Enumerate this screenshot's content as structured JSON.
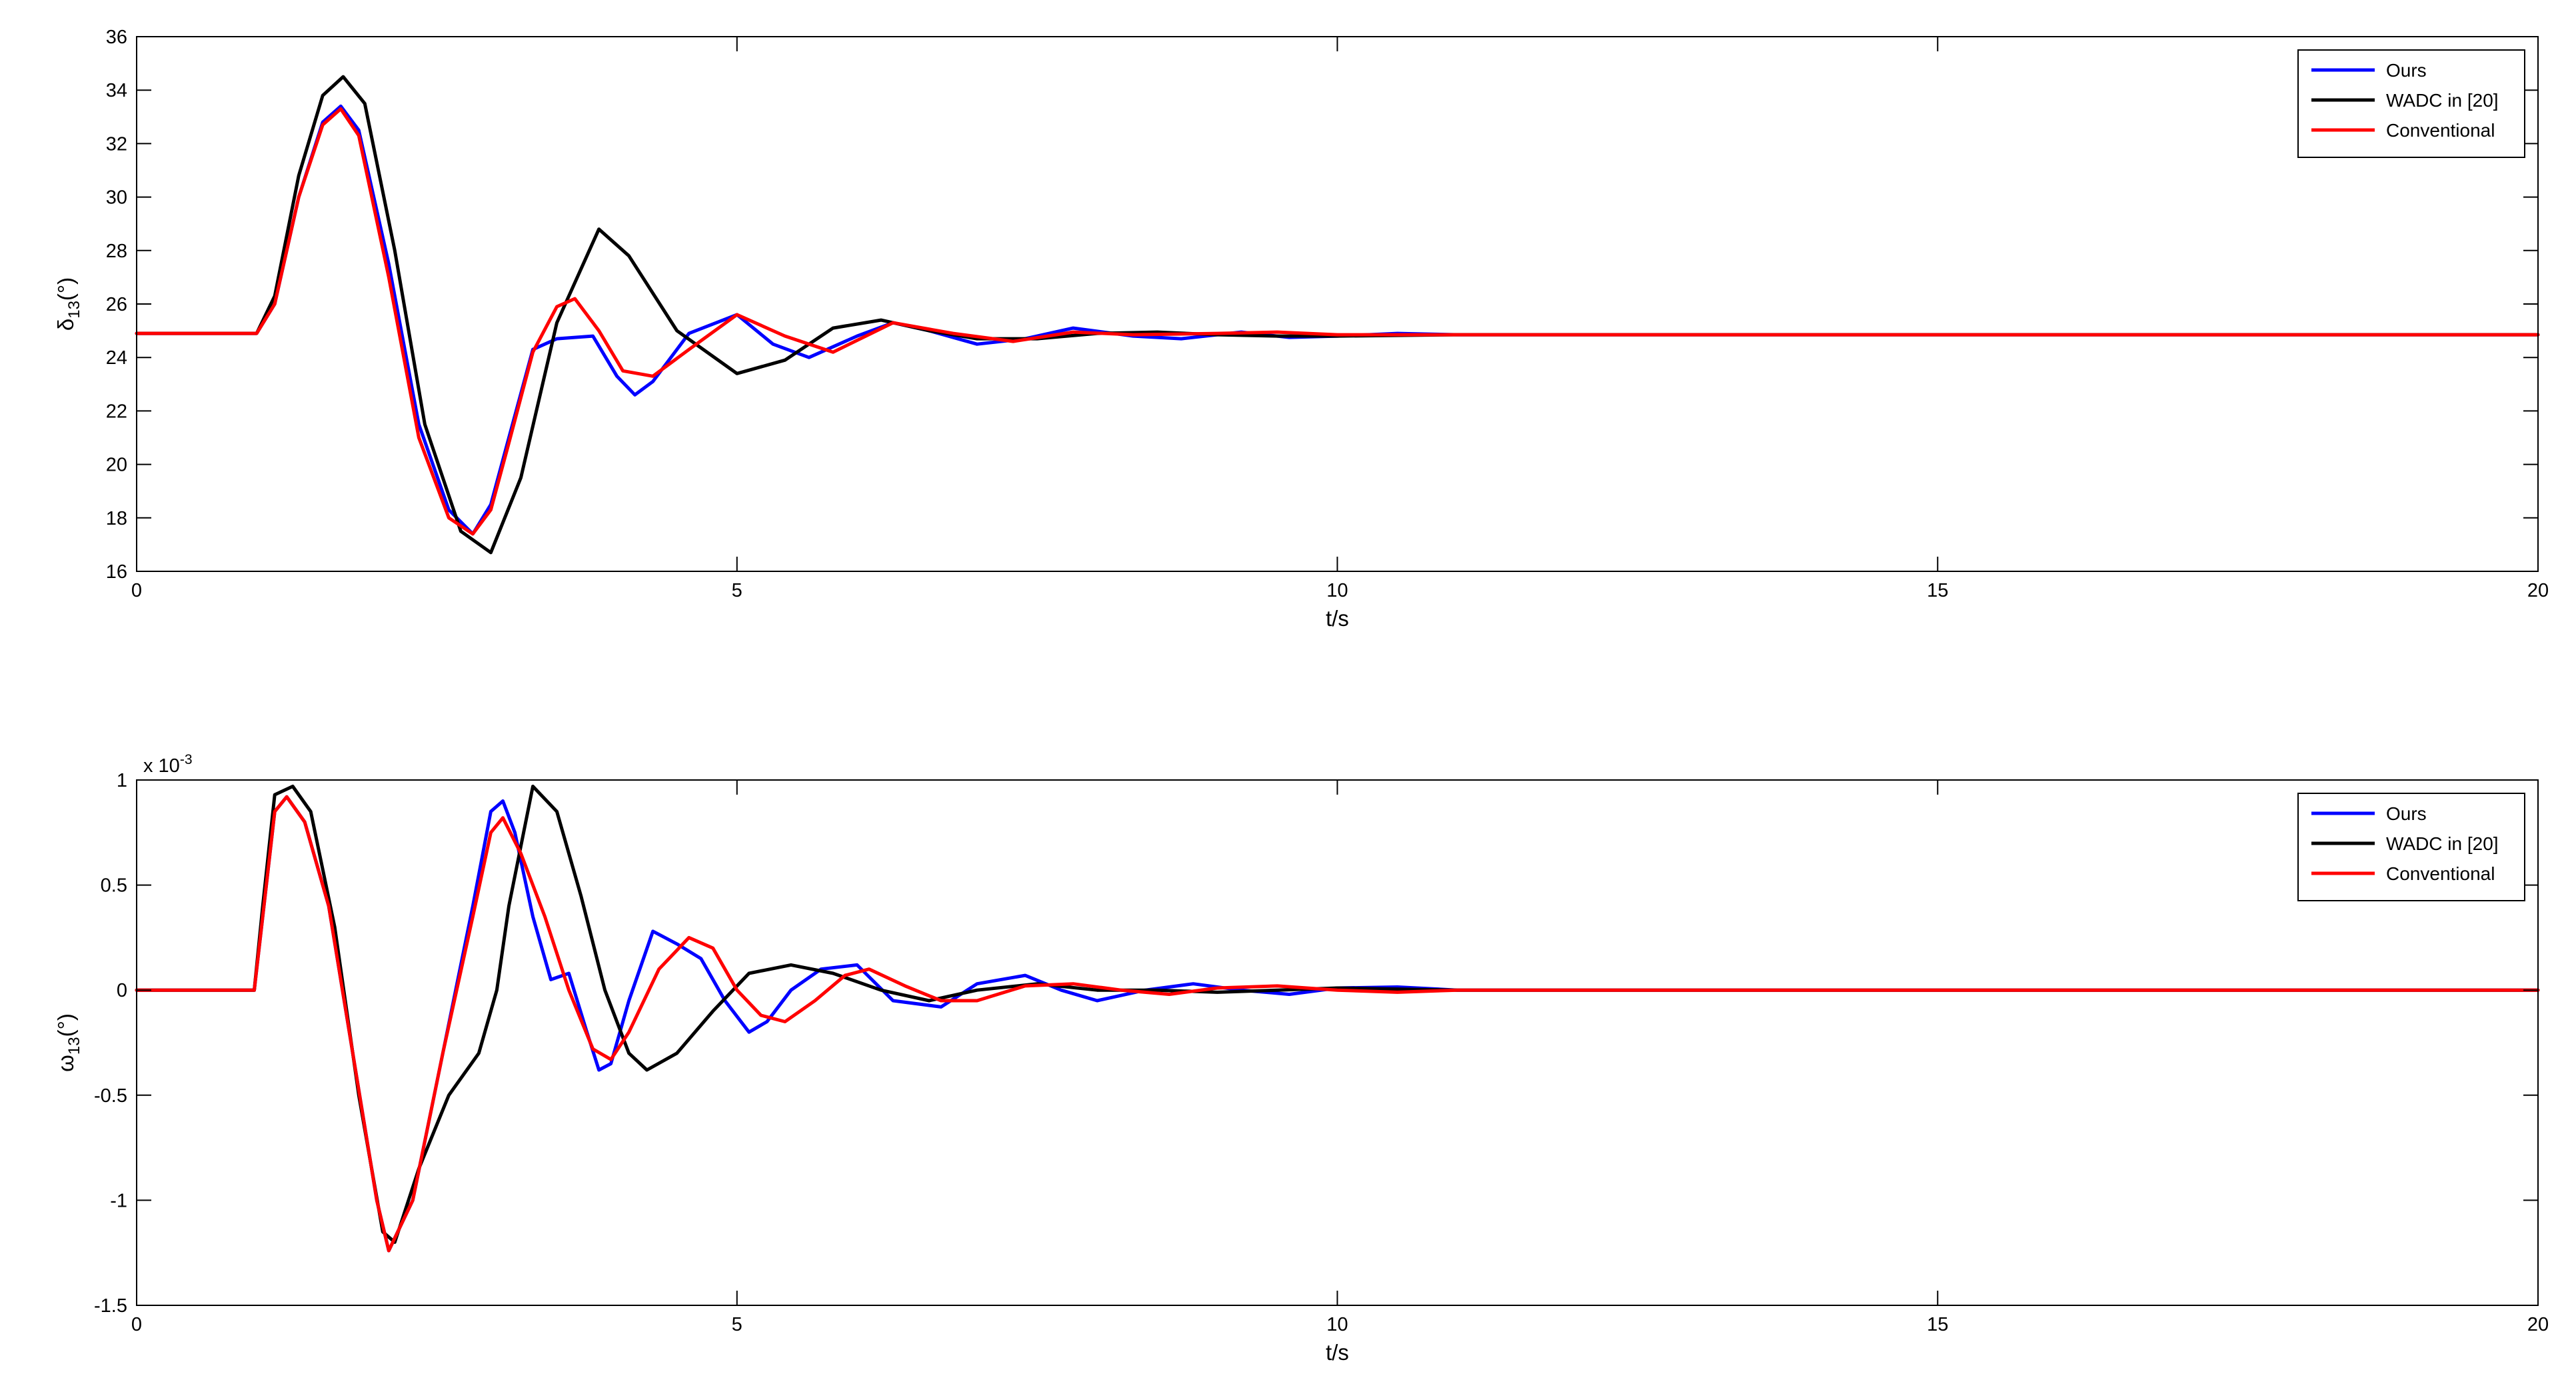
{
  "chart_data": [
    {
      "type": "line",
      "xlabel": "t/s",
      "ylabel": "δ",
      "ylabel_sub": "13",
      "ylabel_suffix": "(°)",
      "xlim": [
        0,
        20
      ],
      "ylim": [
        16,
        36
      ],
      "xticks": [
        0,
        5,
        10,
        15,
        20
      ],
      "yticks": [
        16,
        18,
        20,
        22,
        24,
        26,
        28,
        30,
        32,
        34,
        36
      ],
      "grid": false,
      "legend_position": "top-right",
      "series": [
        {
          "name": "Ours",
          "color": "#0000ff",
          "x": [
            0,
            1.0,
            1.15,
            1.35,
            1.55,
            1.7,
            1.85,
            2.1,
            2.35,
            2.6,
            2.8,
            2.95,
            3.1,
            3.3,
            3.5,
            3.8,
            4.0,
            4.15,
            4.3,
            4.6,
            5.0,
            5.3,
            5.6,
            6.0,
            6.3,
            6.6,
            7.0,
            7.4,
            7.8,
            8.3,
            8.7,
            9.2,
            9.6,
            10.0,
            10.5,
            11.0,
            12.0,
            13.0,
            14.0,
            16.0,
            20.0
          ],
          "y": [
            24.9,
            24.9,
            26.0,
            30.0,
            32.8,
            33.4,
            32.5,
            27.5,
            21.5,
            18.3,
            17.4,
            18.5,
            21.0,
            24.3,
            24.7,
            24.8,
            23.3,
            22.6,
            23.1,
            24.9,
            25.6,
            24.5,
            24.0,
            24.8,
            25.3,
            25.0,
            24.5,
            24.7,
            25.1,
            24.8,
            24.7,
            24.95,
            24.75,
            24.8,
            24.9,
            24.85,
            24.85,
            24.85,
            24.85,
            24.85,
            24.85
          ]
        },
        {
          "name": "WADC in [20]",
          "color": "#000000",
          "x": [
            0,
            1.0,
            1.15,
            1.35,
            1.55,
            1.72,
            1.9,
            2.15,
            2.4,
            2.7,
            2.95,
            3.2,
            3.5,
            3.85,
            4.1,
            4.5,
            5.0,
            5.4,
            5.8,
            6.2,
            6.6,
            7.0,
            7.5,
            8.0,
            8.5,
            9.0,
            9.5,
            10.0,
            11.0,
            12.0,
            20.0
          ],
          "y": [
            24.9,
            24.9,
            26.3,
            30.8,
            33.8,
            34.5,
            33.5,
            28.0,
            21.5,
            17.5,
            16.7,
            19.5,
            25.3,
            28.8,
            27.8,
            25.0,
            23.4,
            23.9,
            25.1,
            25.4,
            25.0,
            24.7,
            24.7,
            24.9,
            24.95,
            24.85,
            24.8,
            24.8,
            24.85,
            24.85,
            24.85
          ]
        },
        {
          "name": "Conventional",
          "color": "#ff0000",
          "x": [
            0,
            1.0,
            1.15,
            1.35,
            1.55,
            1.7,
            1.85,
            2.1,
            2.35,
            2.6,
            2.8,
            2.95,
            3.1,
            3.3,
            3.5,
            3.65,
            3.85,
            4.05,
            4.3,
            4.6,
            5.0,
            5.4,
            5.8,
            6.3,
            6.8,
            7.3,
            7.8,
            8.3,
            9.0,
            9.5,
            10.0,
            11.0,
            12.0,
            20.0
          ],
          "y": [
            24.9,
            24.9,
            26.0,
            30.0,
            32.7,
            33.3,
            32.3,
            27.0,
            21.0,
            18.0,
            17.4,
            18.3,
            20.8,
            24.2,
            25.9,
            26.2,
            25.0,
            23.5,
            23.3,
            24.3,
            25.6,
            24.8,
            24.2,
            25.3,
            24.9,
            24.6,
            24.95,
            24.85,
            24.9,
            24.95,
            24.85,
            24.85,
            24.85,
            24.85
          ]
        }
      ]
    },
    {
      "type": "line",
      "xlabel": "t/s",
      "ylabel": "ω",
      "ylabel_sub": "13",
      "ylabel_suffix": "(°)",
      "xlim": [
        0,
        20
      ],
      "ylim": [
        -1.5,
        1
      ],
      "yscale_label_base": "x 10",
      "yscale_label_exp": "-3",
      "xticks": [
        0,
        5,
        10,
        15,
        20
      ],
      "yticks": [
        -1.5,
        -1,
        -0.5,
        0,
        0.5,
        1
      ],
      "ytick_labels": [
        "-1.5",
        "-1",
        "-0.5",
        "0",
        "0.5",
        "1"
      ],
      "grid": false,
      "legend_position": "top-right",
      "series": [
        {
          "name": "Ours",
          "color": "#0000ff",
          "x": [
            0,
            0.98,
            1.05,
            1.15,
            1.25,
            1.4,
            1.6,
            1.8,
            2.0,
            2.1,
            2.3,
            2.55,
            2.8,
            2.95,
            3.05,
            3.15,
            3.3,
            3.45,
            3.6,
            3.75,
            3.85,
            3.95,
            4.1,
            4.3,
            4.5,
            4.7,
            4.9,
            5.1,
            5.25,
            5.45,
            5.7,
            6.0,
            6.3,
            6.7,
            7.0,
            7.4,
            7.7,
            8.0,
            8.4,
            8.8,
            9.2,
            9.6,
            10.0,
            10.5,
            11.0,
            12.0,
            20.0
          ],
          "y": [
            0,
            0,
            0.35,
            0.85,
            0.92,
            0.8,
            0.4,
            -0.3,
            -1.0,
            -1.24,
            -1.0,
            -0.3,
            0.4,
            0.85,
            0.9,
            0.75,
            0.35,
            0.05,
            0.08,
            -0.2,
            -0.38,
            -0.35,
            -0.05,
            0.28,
            0.22,
            0.15,
            -0.05,
            -0.2,
            -0.15,
            0.0,
            0.1,
            0.12,
            -0.05,
            -0.08,
            0.03,
            0.07,
            0.0,
            -0.05,
            0.0,
            0.03,
            0.0,
            -0.02,
            0.01,
            0.015,
            0.0,
            0.0,
            0.0
          ]
        },
        {
          "name": "WADC in [20]",
          "color": "#000000",
          "x": [
            0,
            0.98,
            1.05,
            1.15,
            1.3,
            1.45,
            1.65,
            1.85,
            2.05,
            2.15,
            2.35,
            2.6,
            2.85,
            3.0,
            3.1,
            3.3,
            3.5,
            3.7,
            3.9,
            4.1,
            4.25,
            4.5,
            4.8,
            5.1,
            5.45,
            5.8,
            6.2,
            6.6,
            7.0,
            7.5,
            8.0,
            8.5,
            9.0,
            9.5,
            10.0,
            11.0,
            12.0,
            20.0
          ],
          "y": [
            0,
            0,
            0.4,
            0.93,
            0.97,
            0.85,
            0.3,
            -0.5,
            -1.15,
            -1.2,
            -0.85,
            -0.5,
            -0.3,
            0.0,
            0.4,
            0.97,
            0.85,
            0.45,
            0.0,
            -0.3,
            -0.38,
            -0.3,
            -0.1,
            0.08,
            0.12,
            0.08,
            0.0,
            -0.05,
            0.0,
            0.03,
            0.0,
            0.0,
            -0.01,
            0.0,
            0.01,
            0.0,
            0.0,
            0.0
          ]
        },
        {
          "name": "Conventional",
          "color": "#ff0000",
          "x": [
            0,
            0.98,
            1.05,
            1.15,
            1.25,
            1.4,
            1.6,
            1.8,
            2.0,
            2.1,
            2.3,
            2.55,
            2.8,
            2.95,
            3.05,
            3.2,
            3.4,
            3.6,
            3.8,
            3.95,
            4.1,
            4.35,
            4.6,
            4.8,
            5.0,
            5.2,
            5.4,
            5.65,
            5.9,
            6.1,
            6.4,
            6.7,
            7.0,
            7.4,
            7.8,
            8.2,
            8.6,
            9.0,
            9.5,
            10.0,
            10.5,
            11.0,
            12.0,
            20.0
          ],
          "y": [
            0,
            0,
            0.35,
            0.85,
            0.92,
            0.8,
            0.4,
            -0.3,
            -1.0,
            -1.24,
            -1.0,
            -0.3,
            0.35,
            0.75,
            0.82,
            0.65,
            0.35,
            0.0,
            -0.28,
            -0.33,
            -0.2,
            0.1,
            0.25,
            0.2,
            0.0,
            -0.12,
            -0.15,
            -0.05,
            0.07,
            0.1,
            0.02,
            -0.05,
            -0.05,
            0.02,
            0.03,
            0.0,
            -0.02,
            0.01,
            0.02,
            0.0,
            -0.01,
            0.0,
            0.0,
            0.0
          ]
        }
      ]
    }
  ]
}
